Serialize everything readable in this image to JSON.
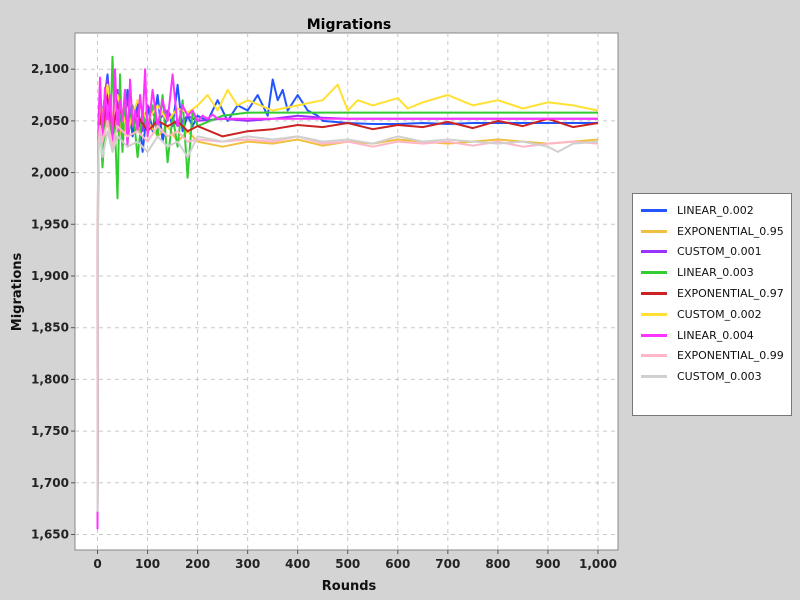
{
  "chart_data": {
    "type": "line",
    "title": "Migrations",
    "xlabel": "Rounds",
    "ylabel": "Migrations",
    "xlim": [
      -45,
      1040
    ],
    "ylim": [
      1635,
      2135
    ],
    "xticks": [
      0,
      100,
      200,
      300,
      400,
      500,
      600,
      700,
      800,
      900,
      1000
    ],
    "xtick_labels": [
      "0",
      "100",
      "200",
      "300",
      "400",
      "500",
      "600",
      "700",
      "800",
      "900",
      "1,000"
    ],
    "yticks": [
      1650,
      1700,
      1750,
      1800,
      1850,
      1900,
      1950,
      2000,
      2050,
      2100
    ],
    "ytick_labels": [
      "1,650",
      "1,700",
      "1,750",
      "1,800",
      "1,850",
      "1,900",
      "1,950",
      "2,000",
      "2,050",
      "2,100"
    ],
    "grid": true,
    "legend_position": "right",
    "series": [
      {
        "name": "LINEAR_0.002",
        "color": "#2255ff",
        "x": [
          0,
          1,
          2,
          5,
          10,
          20,
          30,
          40,
          50,
          60,
          70,
          80,
          90,
          100,
          110,
          120,
          130,
          140,
          150,
          160,
          170,
          180,
          190,
          200,
          220,
          240,
          260,
          280,
          300,
          320,
          340,
          350,
          360,
          370,
          380,
          400,
          420,
          440,
          450,
          500,
          550,
          600,
          650,
          700,
          750,
          800,
          850,
          900,
          950,
          1000
        ],
        "y": [
          1668,
          1950,
          2040,
          2070,
          2055,
          2095,
          2035,
          2075,
          2025,
          2080,
          2035,
          2070,
          2020,
          2065,
          2040,
          2075,
          2030,
          2060,
          2045,
          2085,
          2040,
          2055,
          2045,
          2055,
          2050,
          2070,
          2050,
          2065,
          2060,
          2075,
          2055,
          2090,
          2070,
          2080,
          2060,
          2075,
          2060,
          2055,
          2050,
          2048,
          2047,
          2047,
          2048,
          2047,
          2048,
          2048,
          2048,
          2048,
          2048,
          2048
        ]
      },
      {
        "name": "EXPONENTIAL_0.95",
        "color": "#f0c040",
        "x": [
          0,
          1,
          2,
          5,
          10,
          20,
          30,
          40,
          50,
          60,
          80,
          100,
          120,
          140,
          160,
          180,
          200,
          250,
          300,
          350,
          400,
          450,
          500,
          550,
          600,
          650,
          700,
          750,
          800,
          850,
          900,
          950,
          1000
        ],
        "y": [
          1675,
          1990,
          2035,
          2060,
          2050,
          2080,
          2040,
          2060,
          2030,
          2055,
          2040,
          2050,
          2035,
          2045,
          2030,
          2040,
          2030,
          2025,
          2030,
          2028,
          2032,
          2026,
          2030,
          2028,
          2032,
          2030,
          2028,
          2030,
          2032,
          2030,
          2028,
          2030,
          2032
        ]
      },
      {
        "name": "CUSTOM_0.001",
        "color": "#9933ff",
        "x": [
          0,
          1,
          2,
          5,
          10,
          20,
          30,
          40,
          50,
          60,
          70,
          80,
          90,
          100,
          120,
          140,
          160,
          180,
          200,
          250,
          300,
          350,
          400,
          450,
          500,
          550,
          600,
          650,
          700,
          750,
          800,
          850,
          900,
          950,
          1000
        ],
        "y": [
          1660,
          1990,
          2040,
          2070,
          2050,
          2090,
          2040,
          2080,
          2040,
          2070,
          2045,
          2060,
          2040,
          2065,
          2050,
          2060,
          2045,
          2055,
          2050,
          2052,
          2050,
          2052,
          2055,
          2053,
          2052,
          2052,
          2052,
          2052,
          2052,
          2052,
          2052,
          2052,
          2052,
          2052,
          2052
        ]
      },
      {
        "name": "LINEAR_0.003",
        "color": "#33cc33",
        "x": [
          0,
          1,
          2,
          5,
          10,
          20,
          25,
          30,
          40,
          45,
          50,
          55,
          60,
          70,
          80,
          90,
          100,
          110,
          120,
          130,
          140,
          150,
          160,
          170,
          180,
          190,
          200,
          250,
          300,
          350,
          400,
          500,
          600,
          700,
          800,
          900,
          1000
        ],
        "y": [
          1665,
          1980,
          2040,
          2055,
          2005,
          2085,
          2030,
          2112,
          1975,
          2095,
          2020,
          2080,
          2030,
          2065,
          2015,
          2060,
          2040,
          2065,
          2035,
          2075,
          2010,
          2055,
          2025,
          2070,
          1995,
          2060,
          2045,
          2055,
          2058,
          2058,
          2058,
          2058,
          2058,
          2058,
          2058,
          2058,
          2058
        ]
      },
      {
        "name": "EXPONENTIAL_0.97",
        "color": "#cc2222",
        "x": [
          0,
          1,
          2,
          5,
          10,
          20,
          30,
          40,
          60,
          80,
          100,
          120,
          140,
          160,
          180,
          200,
          250,
          300,
          350,
          400,
          450,
          500,
          550,
          600,
          650,
          700,
          750,
          800,
          850,
          900,
          950,
          1000
        ],
        "y": [
          1662,
          1995,
          2035,
          2060,
          2040,
          2075,
          2040,
          2065,
          2045,
          2055,
          2040,
          2050,
          2045,
          2050,
          2040,
          2045,
          2035,
          2040,
          2042,
          2046,
          2044,
          2048,
          2042,
          2046,
          2044,
          2049,
          2043,
          2050,
          2045,
          2052,
          2044,
          2048
        ]
      },
      {
        "name": "CUSTOM_0.002",
        "color": "#ffe033",
        "x": [
          0,
          1,
          2,
          5,
          10,
          20,
          30,
          40,
          60,
          80,
          100,
          120,
          140,
          160,
          180,
          200,
          220,
          240,
          260,
          280,
          300,
          350,
          400,
          450,
          480,
          500,
          520,
          550,
          600,
          620,
          650,
          700,
          750,
          800,
          850,
          900,
          950,
          1000
        ],
        "y": [
          1670,
          2000,
          2045,
          2070,
          2055,
          2085,
          2050,
          2075,
          2040,
          2070,
          2050,
          2065,
          2050,
          2062,
          2058,
          2065,
          2075,
          2060,
          2080,
          2065,
          2070,
          2060,
          2065,
          2070,
          2085,
          2060,
          2070,
          2065,
          2072,
          2062,
          2068,
          2075,
          2065,
          2070,
          2062,
          2068,
          2065,
          2060
        ]
      },
      {
        "name": "LINEAR_0.004",
        "color": "#ff33ff",
        "x": [
          0,
          1,
          2,
          5,
          10,
          15,
          20,
          25,
          30,
          35,
          40,
          45,
          50,
          55,
          60,
          65,
          70,
          75,
          80,
          85,
          90,
          95,
          100,
          110,
          120,
          130,
          140,
          150,
          160,
          170,
          180,
          190,
          200,
          210,
          220,
          230,
          240,
          300,
          400,
          500,
          600,
          700,
          800,
          900,
          1000
        ],
        "y": [
          1655,
          1990,
          2050,
          2092,
          2035,
          2082,
          2045,
          2075,
          2030,
          2100,
          2040,
          2070,
          2050,
          2080,
          2025,
          2090,
          2045,
          2060,
          2040,
          2075,
          2050,
          2100,
          2035,
          2080,
          2045,
          2070,
          2050,
          2095,
          2045,
          2065,
          2055,
          2060,
          2050,
          2055,
          2052,
          2056,
          2052,
          2052,
          2052,
          2052,
          2052,
          2052,
          2052,
          2052,
          2052
        ]
      },
      {
        "name": "EXPONENTIAL_0.99",
        "color": "#ffb6c8",
        "x": [
          0,
          1,
          2,
          5,
          10,
          20,
          30,
          40,
          60,
          80,
          100,
          120,
          140,
          160,
          180,
          200,
          250,
          300,
          350,
          400,
          450,
          500,
          550,
          600,
          650,
          700,
          750,
          800,
          850,
          900,
          950,
          1000
        ],
        "y": [
          1680,
          1990,
          2030,
          2045,
          2030,
          2050,
          2025,
          2045,
          2035,
          2040,
          2030,
          2045,
          2035,
          2040,
          2030,
          2032,
          2030,
          2032,
          2030,
          2035,
          2028,
          2030,
          2025,
          2030,
          2028,
          2030,
          2026,
          2030,
          2025,
          2028,
          2030,
          2028
        ]
      },
      {
        "name": "CUSTOM_0.003",
        "color": "#d0d0d0",
        "x": [
          0,
          1,
          2,
          5,
          10,
          20,
          30,
          40,
          60,
          80,
          100,
          120,
          140,
          160,
          180,
          200,
          250,
          300,
          350,
          400,
          450,
          500,
          550,
          600,
          650,
          700,
          750,
          800,
          850,
          900,
          920,
          950,
          1000
        ],
        "y": [
          1672,
          1985,
          2020,
          2035,
          2015,
          2040,
          2020,
          2035,
          2025,
          2030,
          2020,
          2035,
          2025,
          2030,
          2015,
          2035,
          2030,
          2035,
          2032,
          2035,
          2030,
          2032,
          2028,
          2035,
          2030,
          2032,
          2030,
          2028,
          2030,
          2025,
          2020,
          2028,
          2030
        ]
      }
    ]
  }
}
